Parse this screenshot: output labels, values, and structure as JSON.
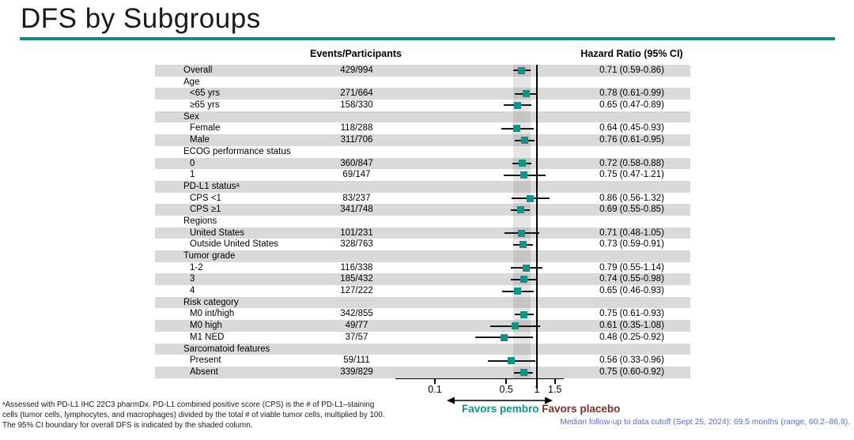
{
  "slide": {
    "title": "DFS by Subgroups"
  },
  "colors": {
    "accent_teal": "#0d8c86",
    "marker_teal": "#12938a",
    "favors_pembro_teal": "#12938a",
    "favors_placebo_maroon": "#7e2f2c",
    "follow_up_blue": "#5b6cb8",
    "row_shade_gray": "#d9d9d9"
  },
  "chart_data": {
    "type": "forest",
    "title": "DFS by Subgroups",
    "column_headers": {
      "events": "Events/Participants",
      "hazard_ratio": "Hazard Ratio (95% CI)"
    },
    "x_axis": {
      "scale": "log",
      "ticks": [
        0.1,
        0.5,
        1,
        1.5
      ],
      "tick_labels": [
        "0.1",
        "0.5",
        "1",
        "1.5"
      ],
      "range": [
        0.04,
        1.8
      ]
    },
    "reference_line": 1.0,
    "shaded_band": {
      "lo": 0.59,
      "hi": 0.86,
      "meaning": "95% CI boundary for overall DFS"
    },
    "legend": {
      "favors_left": "Favors pembro",
      "favors_right": "Favors placebo"
    },
    "rows": [
      {
        "label": "Overall",
        "indent": 0,
        "events": "429/994",
        "hr": 0.71,
        "ci": [
          0.59,
          0.86
        ],
        "hr_text": "0.71 (0.59-0.86)"
      },
      {
        "label": "Age",
        "indent": 0
      },
      {
        "label": "<65 yrs",
        "indent": 1,
        "events": "271/664",
        "hr": 0.78,
        "ci": [
          0.61,
          0.99
        ],
        "hr_text": "0.78 (0.61-0.99)"
      },
      {
        "label": "≥65 yrs",
        "indent": 1,
        "events": "158/330",
        "hr": 0.65,
        "ci": [
          0.47,
          0.89
        ],
        "hr_text": "0.65 (0.47-0.89)"
      },
      {
        "label": "Sex",
        "indent": 0
      },
      {
        "label": "Female",
        "indent": 1,
        "events": "118/288",
        "hr": 0.64,
        "ci": [
          0.45,
          0.93
        ],
        "hr_text": "0.64 (0.45-0.93)"
      },
      {
        "label": "Male",
        "indent": 1,
        "events": "311/706",
        "hr": 0.76,
        "ci": [
          0.61,
          0.95
        ],
        "hr_text": "0.76 (0.61-0.95)"
      },
      {
        "label": "ECOG performance status",
        "indent": 0
      },
      {
        "label": "0",
        "indent": 1,
        "events": "360/847",
        "hr": 0.72,
        "ci": [
          0.58,
          0.88
        ],
        "hr_text": "0.72 (0.58-0.88)"
      },
      {
        "label": "1",
        "indent": 1,
        "events": "69/147",
        "hr": 0.75,
        "ci": [
          0.47,
          1.21
        ],
        "hr_text": "0.75 (0.47-1.21)"
      },
      {
        "label": "PD-L1 statusᵃ",
        "indent": 0
      },
      {
        "label": "CPS <1",
        "indent": 1,
        "events": "83/237",
        "hr": 0.86,
        "ci": [
          0.56,
          1.32
        ],
        "hr_text": "0.86 (0.56-1.32)"
      },
      {
        "label": "CPS ≥1",
        "indent": 1,
        "events": "341/748",
        "hr": 0.69,
        "ci": [
          0.55,
          0.85
        ],
        "hr_text": "0.69 (0.55-0.85)"
      },
      {
        "label": "Regions",
        "indent": 0
      },
      {
        "label": "United States",
        "indent": 1,
        "events": "101/231",
        "hr": 0.71,
        "ci": [
          0.48,
          1.05
        ],
        "hr_text": "0.71 (0.48-1.05)"
      },
      {
        "label": "Outside United States",
        "indent": 1,
        "events": "328/763",
        "hr": 0.73,
        "ci": [
          0.59,
          0.91
        ],
        "hr_text": "0.73 (0.59-0.91)"
      },
      {
        "label": "Tumor grade",
        "indent": 0
      },
      {
        "label": "1-2",
        "indent": 1,
        "events": "116/338",
        "hr": 0.79,
        "ci": [
          0.55,
          1.14
        ],
        "hr_text": "0.79 (0.55-1.14)"
      },
      {
        "label": "3",
        "indent": 1,
        "events": "185/432",
        "hr": 0.74,
        "ci": [
          0.55,
          0.98
        ],
        "hr_text": "0.74 (0.55-0.98)"
      },
      {
        "label": "4",
        "indent": 1,
        "events": "127/222",
        "hr": 0.65,
        "ci": [
          0.46,
          0.93
        ],
        "hr_text": "0.65 (0.46-0.93)"
      },
      {
        "label": "Risk category",
        "indent": 0
      },
      {
        "label": "M0 int/high",
        "indent": 1,
        "events": "342/855",
        "hr": 0.75,
        "ci": [
          0.61,
          0.93
        ],
        "hr_text": "0.75 (0.61-0.93)"
      },
      {
        "label": "M0 high",
        "indent": 1,
        "events": "49/77",
        "hr": 0.61,
        "ci": [
          0.35,
          1.08
        ],
        "hr_text": "0.61 (0.35-1.08)"
      },
      {
        "label": "M1 NED",
        "indent": 1,
        "events": "37/57",
        "hr": 0.48,
        "ci": [
          0.25,
          0.92
        ],
        "hr_text": "0.48 (0.25-0.92)"
      },
      {
        "label": "Sarcomatoid features",
        "indent": 0
      },
      {
        "label": "Present",
        "indent": 1,
        "events": "59/111",
        "hr": 0.56,
        "ci": [
          0.33,
          0.96
        ],
        "hr_text": "0.56 (0.33-0.96)"
      },
      {
        "label": "Absent",
        "indent": 1,
        "events": "339/829",
        "hr": 0.75,
        "ci": [
          0.6,
          0.92
        ],
        "hr_text": "0.75 (0.60-0.92)"
      }
    ]
  },
  "footnote": {
    "lines": [
      "ᵃAssessed with PD-L1 IHC 22C3 pharmDx. PD-L1 combined positive score (CPS) is the # of PD-L1–staining",
      "cells (tumor cells, lymphocytes, and macrophages) divided by the total # of viable tumor cells, multiplied by 100.",
      "The 95% CI boundary for overall DFS is indicated by the shaded column."
    ]
  },
  "follow_up_note": "Median follow-up to data cutoff (Sept 25, 2024): 69.5 months (range, 60.2–86.9)."
}
